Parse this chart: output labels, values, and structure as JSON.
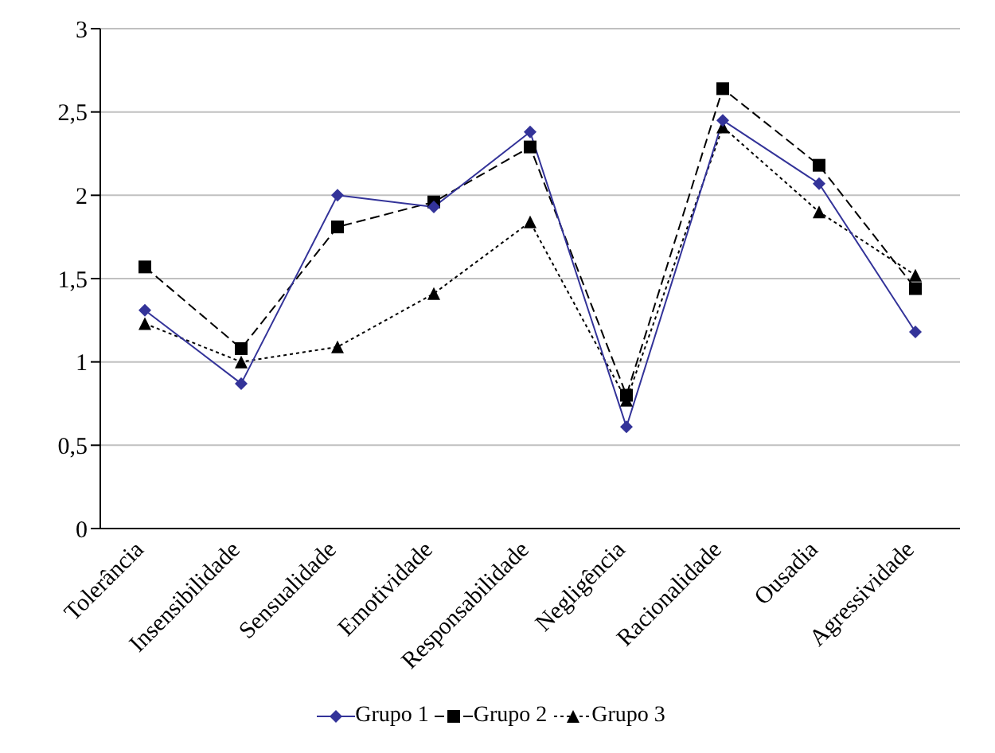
{
  "chart_data": {
    "type": "line",
    "categories": [
      "Tolerância",
      "Insensibilidade",
      "Sensualidade",
      "Emotividade",
      "Responsabilidade",
      "Negligência",
      "Racionalidade",
      "Ousadia",
      "Agressividade"
    ],
    "series": [
      {
        "name": "Grupo 1",
        "color": "#333399",
        "marker": "diamond",
        "line_style": "solid",
        "values": [
          1.31,
          0.87,
          2.0,
          1.93,
          2.38,
          0.61,
          2.45,
          2.07,
          1.18
        ]
      },
      {
        "name": "Grupo 2",
        "color": "#000000",
        "marker": "square",
        "line_style": "dashed",
        "values": [
          1.57,
          1.08,
          1.81,
          1.96,
          2.29,
          0.8,
          2.64,
          2.18,
          1.44
        ]
      },
      {
        "name": "Grupo 3",
        "color": "#000000",
        "marker": "triangle",
        "line_style": "dotted",
        "values": [
          1.23,
          1.0,
          1.09,
          1.41,
          1.84,
          0.77,
          2.41,
          1.9,
          1.52
        ]
      }
    ],
    "ylim": [
      0,
      3
    ],
    "yticks": [
      0,
      {
        "value": 0.5,
        "label": "0,5"
      },
      1,
      {
        "value": 1.5,
        "label": "1,5"
      },
      2,
      {
        "value": 2.5,
        "label": "2,5"
      },
      3
    ],
    "grid": "y",
    "legend": "bottom"
  }
}
